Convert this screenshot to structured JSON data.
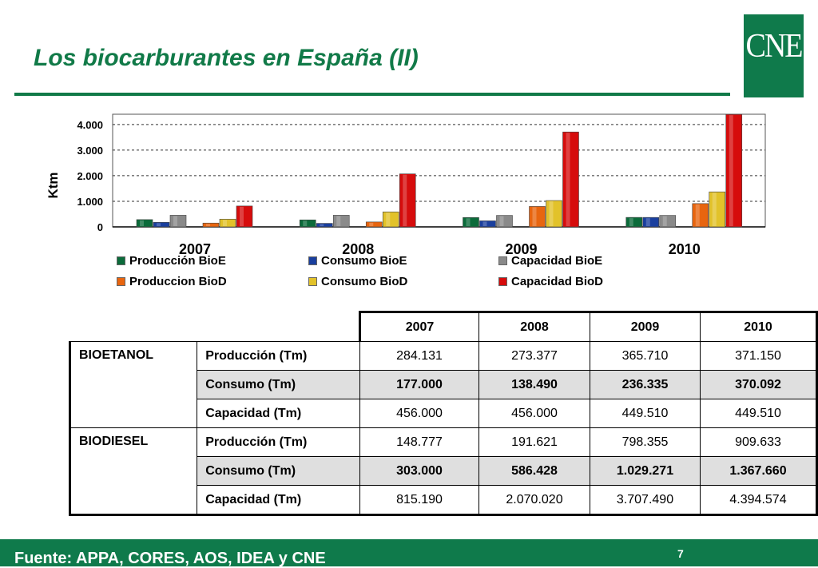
{
  "title": "Los biocarburantes en España (II)",
  "logo": "CNE",
  "source": "Fuente: APPA, CORES, AOS, IDEA y CNE",
  "page_number": "7",
  "chart_data": {
    "type": "bar",
    "ylabel": "Ktm",
    "ylim": [
      0,
      4400
    ],
    "yticks": [
      0,
      1000,
      2000,
      3000,
      4000
    ],
    "ytick_labels": [
      "0",
      "1.000",
      "2.000",
      "3.000",
      "4.000"
    ],
    "grid": "dashed horizontal",
    "legend_position": "bottom",
    "categories": [
      "2007",
      "2008",
      "2009",
      "2010"
    ],
    "series": [
      {
        "name": "Producción BioE",
        "color": "#0b6b3a",
        "values": [
          284.131,
          273.377,
          365.71,
          371.15
        ]
      },
      {
        "name": "Consumo BioE",
        "color": "#1a3f9e",
        "values": [
          177.0,
          138.49,
          236.335,
          370.092
        ]
      },
      {
        "name": "Capacidad BioE",
        "color": "#8a8a8a",
        "values": [
          456.0,
          456.0,
          449.51,
          449.51
        ]
      },
      {
        "name": "Produccion BioD",
        "color": "#e8650f",
        "values": [
          148.777,
          191.621,
          798.355,
          909.633
        ]
      },
      {
        "name": "Consumo BioD",
        "color": "#e2c22a",
        "values": [
          303.0,
          586.428,
          1029.271,
          1367.66
        ]
      },
      {
        "name": "Capacidad BioD",
        "color": "#d60c0c",
        "values": [
          815.19,
          2070.02,
          3707.49,
          4394.574
        ]
      }
    ]
  },
  "table": {
    "years": [
      "2007",
      "2008",
      "2009",
      "2010"
    ],
    "groups": [
      {
        "name": "BIOETANOL",
        "rows": [
          {
            "metric": "Producción (Tm)",
            "values": [
              "284.131",
              "273.377",
              "365.710",
              "371.150"
            ],
            "shaded": false
          },
          {
            "metric": "Consumo (Tm)",
            "values": [
              "177.000",
              "138.490",
              "236.335",
              "370.092"
            ],
            "shaded": true
          },
          {
            "metric": "Capacidad (Tm)",
            "values": [
              "456.000",
              "456.000",
              "449.510",
              "449.510"
            ],
            "shaded": false
          }
        ]
      },
      {
        "name": "BIODIESEL",
        "rows": [
          {
            "metric": "Producción (Tm)",
            "values": [
              "148.777",
              "191.621",
              "798.355",
              "909.633"
            ],
            "shaded": false
          },
          {
            "metric": "Consumo (Tm)",
            "values": [
              "303.000",
              "586.428",
              "1.029.271",
              "1.367.660"
            ],
            "shaded": true
          },
          {
            "metric": "Capacidad (Tm)",
            "values": [
              "815.190",
              "2.070.020",
              "3.707.490",
              "4.394.574"
            ],
            "shaded": false
          }
        ]
      }
    ]
  }
}
